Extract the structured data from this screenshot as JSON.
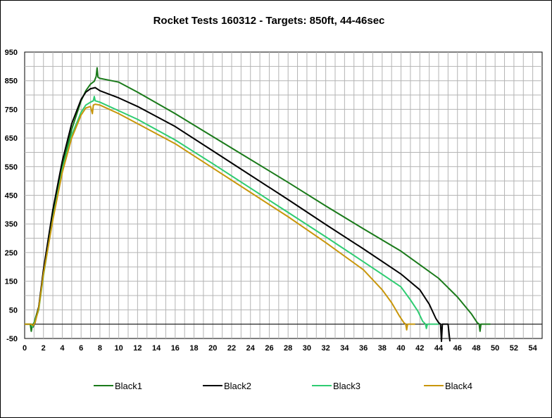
{
  "chart_data": {
    "type": "line",
    "title": "Rocket Tests 160312 - Targets: 850ft, 44-46sec",
    "xlabel": "",
    "ylabel": "",
    "xlim": [
      0,
      55
    ],
    "ylim": [
      -50,
      950
    ],
    "x_ticks": [
      "0",
      "2",
      "4",
      "6",
      "8",
      "10",
      "12",
      "14",
      "16",
      "18",
      "20",
      "22",
      "24",
      "26",
      "28",
      "30",
      "32",
      "34",
      "36",
      "38",
      "40",
      "42",
      "44",
      "46",
      "48",
      "50",
      "52",
      "54"
    ],
    "y_ticks": [
      "950",
      "850",
      "750",
      "650",
      "550",
      "450",
      "350",
      "250",
      "150",
      "50",
      "-50"
    ],
    "grid": true,
    "legend_position": "bottom",
    "series": [
      {
        "name": "Black1",
        "color": "#1a7a1a",
        "points": [
          [
            0,
            0
          ],
          [
            0.6,
            0
          ],
          [
            0.7,
            -25
          ],
          [
            0.8,
            -5
          ],
          [
            1,
            5
          ],
          [
            1.5,
            60
          ],
          [
            2,
            180
          ],
          [
            3,
            380
          ],
          [
            4,
            550
          ],
          [
            5,
            680
          ],
          [
            6,
            780
          ],
          [
            6.5,
            815
          ],
          [
            7,
            838
          ],
          [
            7.4,
            848
          ],
          [
            7.6,
            865
          ],
          [
            7.7,
            895
          ],
          [
            7.8,
            862
          ],
          [
            8,
            858
          ],
          [
            10,
            845
          ],
          [
            12,
            810
          ],
          [
            16,
            735
          ],
          [
            20,
            655
          ],
          [
            24,
            575
          ],
          [
            28,
            495
          ],
          [
            32,
            413
          ],
          [
            36,
            333
          ],
          [
            40,
            255
          ],
          [
            44,
            160
          ],
          [
            46,
            95
          ],
          [
            47.5,
            35
          ],
          [
            48.1,
            5
          ],
          [
            48.3,
            0
          ],
          [
            48.4,
            -25
          ],
          [
            48.5,
            0
          ],
          [
            49.5,
            0
          ]
        ]
      },
      {
        "name": "Black2",
        "color": "#000000",
        "points": [
          [
            0,
            0
          ],
          [
            0.7,
            0
          ],
          [
            0.9,
            -10
          ],
          [
            1.1,
            5
          ],
          [
            1.5,
            60
          ],
          [
            2,
            190
          ],
          [
            3,
            400
          ],
          [
            4,
            570
          ],
          [
            5,
            700
          ],
          [
            6,
            785
          ],
          [
            6.5,
            810
          ],
          [
            7,
            822
          ],
          [
            7.5,
            826
          ],
          [
            8,
            815
          ],
          [
            10,
            790
          ],
          [
            12,
            760
          ],
          [
            16,
            690
          ],
          [
            20,
            605
          ],
          [
            24,
            520
          ],
          [
            28,
            435
          ],
          [
            32,
            348
          ],
          [
            36,
            263
          ],
          [
            40,
            175
          ],
          [
            42,
            120
          ],
          [
            43,
            70
          ],
          [
            43.7,
            20
          ],
          [
            44,
            5
          ],
          [
            44.2,
            0
          ],
          [
            44.3,
            -60
          ],
          [
            44.4,
            0
          ],
          [
            45,
            0
          ],
          [
            45.2,
            -60
          ]
        ]
      },
      {
        "name": "Black3",
        "color": "#2ecc71",
        "points": [
          [
            0,
            0
          ],
          [
            0.7,
            0
          ],
          [
            0.85,
            -10
          ],
          [
            1,
            0
          ],
          [
            1.5,
            50
          ],
          [
            2,
            170
          ],
          [
            3,
            370
          ],
          [
            4,
            540
          ],
          [
            5,
            660
          ],
          [
            6,
            740
          ],
          [
            6.5,
            765
          ],
          [
            7,
            775
          ],
          [
            7.3,
            780
          ],
          [
            7.4,
            795
          ],
          [
            7.5,
            780
          ],
          [
            8,
            775
          ],
          [
            10,
            745
          ],
          [
            12,
            715
          ],
          [
            16,
            643
          ],
          [
            20,
            560
          ],
          [
            24,
            475
          ],
          [
            28,
            390
          ],
          [
            32,
            305
          ],
          [
            36,
            218
          ],
          [
            40,
            130
          ],
          [
            41,
            85
          ],
          [
            41.8,
            45
          ],
          [
            42.3,
            10
          ],
          [
            42.6,
            0
          ],
          [
            42.7,
            -15
          ],
          [
            42.8,
            0
          ],
          [
            44,
            0
          ]
        ]
      },
      {
        "name": "Black4",
        "color": "#c8960a",
        "points": [
          [
            0,
            0
          ],
          [
            0.7,
            0
          ],
          [
            0.9,
            -5
          ],
          [
            1.1,
            5
          ],
          [
            1.5,
            55
          ],
          [
            2,
            175
          ],
          [
            3,
            365
          ],
          [
            4,
            530
          ],
          [
            5,
            650
          ],
          [
            6,
            730
          ],
          [
            6.5,
            755
          ],
          [
            7,
            760
          ],
          [
            7.2,
            735
          ],
          [
            7.3,
            765
          ],
          [
            7.5,
            768
          ],
          [
            8,
            765
          ],
          [
            10,
            735
          ],
          [
            12,
            700
          ],
          [
            16,
            630
          ],
          [
            20,
            545
          ],
          [
            24,
            460
          ],
          [
            28,
            375
          ],
          [
            32,
            285
          ],
          [
            36,
            190
          ],
          [
            38,
            120
          ],
          [
            39,
            75
          ],
          [
            39.8,
            30
          ],
          [
            40.3,
            5
          ],
          [
            40.5,
            0
          ],
          [
            40.6,
            -20
          ],
          [
            40.7,
            0
          ],
          [
            41.5,
            0
          ]
        ]
      }
    ]
  }
}
